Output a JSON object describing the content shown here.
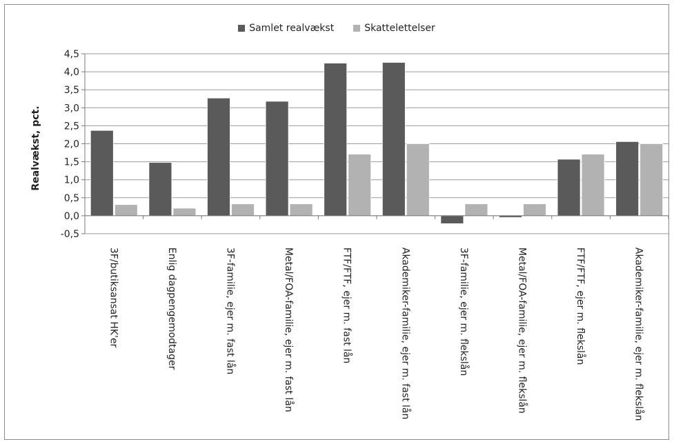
{
  "chart_data": {
    "type": "bar",
    "title": "",
    "xlabel": "",
    "ylabel": "Realvækst, pct.",
    "ylim": [
      -0.5,
      4.5
    ],
    "yticks": [
      "-0,5",
      "0,0",
      "0,5",
      "1,0",
      "1,5",
      "2,0",
      "2,5",
      "3,0",
      "3,5",
      "4,0",
      "4,5"
    ],
    "grid": true,
    "legend_position": "top",
    "categories": [
      "3F/butiksansat HK'er",
      "Enlig dagpengemodtager",
      "3F-familie, ejer m. fast lån",
      "Metal/FOA-familie, ejer m. fast lån",
      "FTF/FTF, ejer m. fast lån",
      "Akademiker-familie, ejer m. fast lån",
      "3F-familie, ejer m. flekslån",
      "Metal/FOA-familie, ejer m. flekslån",
      "FTF/FTF, ejer m. flekslån",
      "Akademiker-familie, ejer m. flekslån"
    ],
    "series": [
      {
        "name": "Samlet realvækst",
        "color": "#5a5a5a",
        "values": [
          2.37,
          1.48,
          3.27,
          3.18,
          4.24,
          4.26,
          -0.22,
          -0.05,
          1.57,
          2.06
        ]
      },
      {
        "name": "Skattelettelser",
        "color": "#b2b2b2",
        "values": [
          0.31,
          0.21,
          0.33,
          0.33,
          1.71,
          2.0,
          0.33,
          0.33,
          1.71,
          2.0
        ]
      }
    ]
  }
}
